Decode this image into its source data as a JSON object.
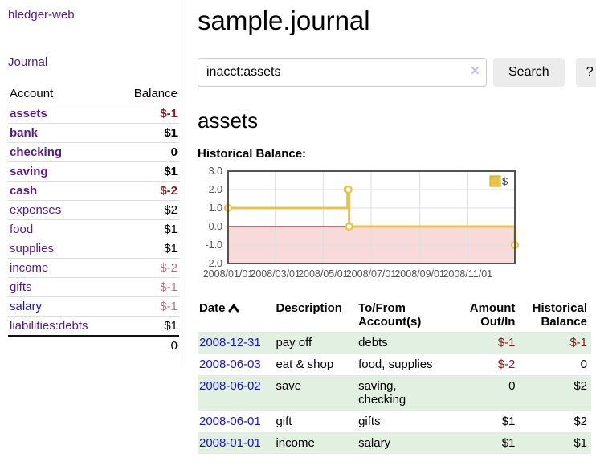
{
  "sidebar": {
    "app_title": "hledger-web",
    "nav": {
      "journal": "Journal"
    },
    "accounts": {
      "headers": {
        "account": "Account",
        "balance": "Balance"
      },
      "rows": [
        {
          "label": "assets",
          "balance": "$-1",
          "level": 1,
          "emph": true,
          "balance_style": "neg-dark"
        },
        {
          "label": "bank",
          "balance": "$1",
          "level": 2,
          "emph": true,
          "balance_style": ""
        },
        {
          "label": "checking",
          "balance": "0",
          "level": 3,
          "emph": true,
          "balance_style": ""
        },
        {
          "label": "saving",
          "balance": "$1",
          "level": 3,
          "emph": true,
          "balance_style": ""
        },
        {
          "label": "cash",
          "balance": "$-2",
          "level": 2,
          "emph": true,
          "balance_style": "neg-dark"
        },
        {
          "label": "expenses",
          "balance": "$2",
          "level": 1,
          "emph": false,
          "balance_style": ""
        },
        {
          "label": "food",
          "balance": "$1",
          "level": 2,
          "emph": false,
          "balance_style": ""
        },
        {
          "label": "supplies",
          "balance": "$1",
          "level": 2,
          "emph": false,
          "balance_style": ""
        },
        {
          "label": "income",
          "balance": "$-2",
          "level": 1,
          "emph": false,
          "balance_style": "neg-soft"
        },
        {
          "label": "gifts",
          "balance": "$-1",
          "level": 2,
          "emph": false,
          "balance_style": "neg-soft"
        },
        {
          "label": "salary",
          "balance": "$-1",
          "level": 2,
          "emph": false,
          "balance_style": "neg-soft",
          "link_blue": true
        },
        {
          "label": "liabilities:debts",
          "balance": "$1",
          "level": 1,
          "emph": false,
          "balance_style": ""
        }
      ],
      "total": "0"
    }
  },
  "main": {
    "title": "sample.journal",
    "search": {
      "value": "inacct:assets",
      "clear_icon": "×",
      "button_label": "Search",
      "help_label": "?"
    },
    "account_heading": "assets",
    "chart_heading": "Historical Balance:",
    "register": {
      "headers": {
        "date": "Date",
        "description": "Description",
        "accounts": "To/From Account(s)",
        "amount": "Amount Out/In",
        "balance": "Historical Balance"
      },
      "rows": [
        {
          "date": "2008-12-31",
          "description": "pay off",
          "accounts": "debts",
          "amount": "$-1",
          "balance": "$-1",
          "amount_neg": true,
          "balance_neg": true
        },
        {
          "date": "2008-06-03",
          "description": "eat & shop",
          "accounts": "food, supplies",
          "amount": "$-2",
          "balance": "0",
          "amount_neg": true,
          "balance_neg": false
        },
        {
          "date": "2008-06-02",
          "description": "save",
          "accounts": "saving, checking",
          "amount": "0",
          "balance": "$2",
          "amount_neg": false,
          "balance_neg": false
        },
        {
          "date": "2008-06-01",
          "description": "gift",
          "accounts": "gifts",
          "amount": "$1",
          "balance": "$2",
          "amount_neg": false,
          "balance_neg": false
        },
        {
          "date": "2008-01-01",
          "description": "income",
          "accounts": "salary",
          "amount": "$1",
          "balance": "$1",
          "amount_neg": false,
          "balance_neg": false
        }
      ]
    }
  },
  "chart_data": {
    "type": "line",
    "title": "Historical Balance:",
    "step": true,
    "xlim": [
      0,
      365
    ],
    "ylim": [
      -2.0,
      3.0
    ],
    "y_ticks": [
      3.0,
      2.0,
      1.0,
      0.0,
      -1.0,
      -2.0
    ],
    "x_ticks": [
      {
        "pos": 0,
        "label": "2008/01/01"
      },
      {
        "pos": 60,
        "label": "2008/03/01"
      },
      {
        "pos": 121,
        "label": "2008/05/01"
      },
      {
        "pos": 182,
        "label": "2008/07/01"
      },
      {
        "pos": 244,
        "label": "2008/09/01"
      },
      {
        "pos": 305,
        "label": "2008/11/01"
      }
    ],
    "series": [
      {
        "name": "$",
        "color": "#EDC240",
        "points": [
          {
            "x": 0,
            "y": 1,
            "date": "2008-01-01"
          },
          {
            "x": 152,
            "y": 2,
            "date": "2008-06-01"
          },
          {
            "x": 153,
            "y": 2,
            "date": "2008-06-02"
          },
          {
            "x": 154,
            "y": 0,
            "date": "2008-06-03"
          },
          {
            "x": 365,
            "y": -1,
            "date": "2008-12-31"
          }
        ]
      }
    ],
    "negative_fill": "#f9dada",
    "zero_line_color": "#8a1c1c",
    "grid": true,
    "legend_position": "top-right"
  }
}
